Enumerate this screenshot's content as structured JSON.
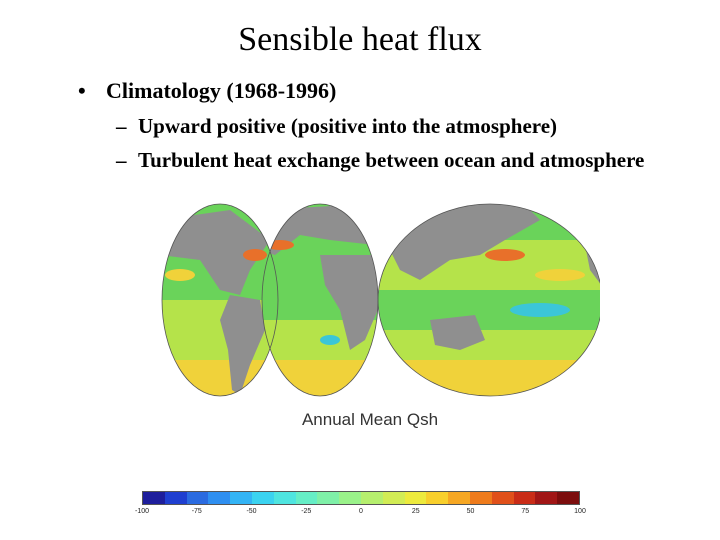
{
  "title": "Sensible heat flux",
  "bullets": {
    "main": "Climatology (1968-1996)",
    "sub": [
      "Upward positive (positive into the atmosphere)",
      "Turbulent heat exchange between ocean and atmosphere"
    ]
  },
  "figure": {
    "caption": "Annual Mean Qsh",
    "colorbar_ticks": [
      "-100",
      "-75",
      "-50",
      "-25",
      "0",
      "25",
      "50",
      "75",
      "100"
    ],
    "colorbar_colors": [
      "#1e1e9c",
      "#1f3fd0",
      "#2b6be0",
      "#2f8ff0",
      "#33b4f5",
      "#3bd3f0",
      "#4fe5e0",
      "#66eec6",
      "#7ff0a8",
      "#9af28a",
      "#b6ef6e",
      "#d2ec55",
      "#edea3d",
      "#f8cf2c",
      "#f6a723",
      "#ee7b1c",
      "#e0501a",
      "#c92c17",
      "#a11616",
      "#7c0d0d"
    ],
    "colors": {
      "land": "#8f8f8f",
      "ocean_low": "#6ad35a",
      "ocean_mid": "#b5e34a",
      "ocean_warm": "#f0d23a",
      "ocean_hot": "#e8702a",
      "ocean_cold": "#3bc6d8"
    }
  }
}
